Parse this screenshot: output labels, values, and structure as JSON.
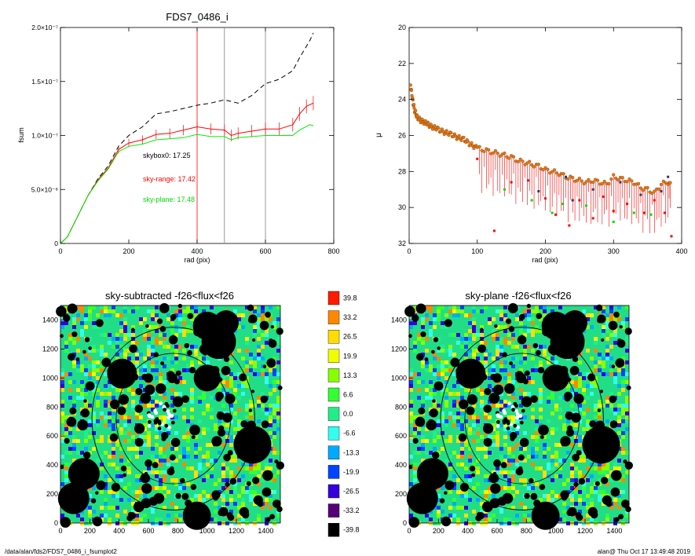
{
  "chart_data": [
    {
      "type": "line",
      "title": "FDS7_0486_i",
      "xlabel": "rad (pix)",
      "ylabel": "fsum",
      "xlim": [
        0,
        800
      ],
      "ylim": [
        0,
        2e-07
      ],
      "xticks": [
        "0",
        "200",
        "400",
        "600",
        "800"
      ],
      "yticks": [
        "0",
        "5.0×10⁻⁸",
        "1.0×10⁻⁷",
        "1.5×10⁻⁷",
        "2.0×10⁻⁷"
      ],
      "ytick_values": [
        0,
        5e-08,
        1e-07,
        1.5e-07,
        2e-07
      ],
      "vlines": [
        {
          "x": 400,
          "color": "#ff0000"
        },
        {
          "x": 480,
          "color": "#808080"
        },
        {
          "x": 600,
          "color": "#808080"
        }
      ],
      "annotations": [
        {
          "text": "skybox0: 17.25",
          "color": "#000000"
        },
        {
          "text": "sky-range: 17.42",
          "color": "#ff0000"
        },
        {
          "text": "sky-plane: 17.48",
          "color": "#00dd00"
        }
      ],
      "series": [
        {
          "style": "dashed",
          "color": "#000000",
          "x": [
            0,
            20,
            50,
            80,
            110,
            140,
            170,
            200,
            240,
            280,
            320,
            360,
            400,
            440,
            480,
            520,
            560,
            600,
            640,
            680,
            700,
            730,
            740
          ],
          "y": [
            0,
            6e-09,
            2.5e-08,
            4.4e-08,
            6e-08,
            7.2e-08,
            9e-08,
            1e-07,
            1.08e-07,
            1.2e-07,
            1.22e-07,
            1.25e-07,
            1.28e-07,
            1.3e-07,
            1.33e-07,
            1.3e-07,
            1.37e-07,
            1.48e-07,
            1.52e-07,
            1.6e-07,
            1.72e-07,
            1.88e-07,
            1.95e-07
          ]
        },
        {
          "style": "solid",
          "color": "#ff0000",
          "errorbars": true,
          "x": [
            0,
            20,
            50,
            80,
            110,
            140,
            170,
            200,
            240,
            280,
            320,
            360,
            400,
            440,
            480,
            500,
            520,
            560,
            600,
            640,
            680,
            700,
            720,
            740
          ],
          "y": [
            0,
            6e-09,
            2.5e-08,
            4.4e-08,
            5.9e-08,
            7e-08,
            8.7e-08,
            9.3e-08,
            9.6e-08,
            1.01e-07,
            1.02e-07,
            1.05e-07,
            1.08e-07,
            1.06e-07,
            1.05e-07,
            1e-07,
            1.02e-07,
            1.04e-07,
            1.06e-07,
            1.06e-07,
            1.1e-07,
            1.2e-07,
            1.27e-07,
            1.3e-07
          ]
        },
        {
          "style": "solid",
          "color": "#00ee00",
          "x": [
            0,
            20,
            50,
            80,
            110,
            140,
            170,
            200,
            240,
            280,
            320,
            360,
            400,
            440,
            480,
            500,
            520,
            560,
            600,
            640,
            680,
            700,
            730,
            740
          ],
          "y": [
            0,
            6e-09,
            2.5e-08,
            4.4e-08,
            5.8e-08,
            6.9e-08,
            8.5e-08,
            9e-08,
            9.2e-08,
            9.6e-08,
            9.7e-08,
            9.8e-08,
            1.01e-07,
            9.9e-08,
            9.9e-08,
            9.6e-08,
            9.8e-08,
            9.9e-08,
            1e-07,
            1e-07,
            1e-07,
            1.05e-07,
            1.1e-07,
            1.09e-07
          ]
        }
      ]
    },
    {
      "type": "scatter",
      "title": "",
      "xlabel": "rad (pix)",
      "ylabel": "μ",
      "xlim": [
        0,
        400
      ],
      "ylim": [
        32,
        20
      ],
      "xticks": [
        "0",
        "100",
        "200",
        "300",
        "400"
      ],
      "yticks": [
        "20",
        "22",
        "24",
        "26",
        "28",
        "30",
        "32"
      ],
      "series": [
        {
          "color": "#e07a1a",
          "marker": "circle",
          "x": [
            2,
            5,
            8,
            12,
            18,
            25,
            32,
            40,
            50,
            60,
            70,
            80,
            90,
            100,
            110,
            120,
            130,
            140,
            150,
            160,
            170,
            180,
            190,
            200,
            210,
            220,
            230,
            240,
            250,
            260,
            270,
            280,
            290,
            300,
            310,
            320,
            330,
            340,
            350,
            360,
            370,
            380,
            385
          ],
          "y": [
            23.2,
            24.0,
            24.6,
            25.0,
            25.2,
            25.3,
            25.5,
            25.6,
            25.8,
            25.9,
            26.1,
            26.2,
            26.5,
            26.7,
            26.8,
            26.9,
            27.0,
            27.1,
            27.2,
            27.4,
            27.5,
            27.6,
            27.7,
            27.9,
            28.0,
            28.1,
            28.3,
            28.4,
            28.5,
            28.6,
            28.5,
            28.6,
            28.7,
            28.3,
            28.4,
            28.5,
            28.6,
            28.9,
            29.0,
            29.2,
            28.7,
            28.6,
            28.8
          ]
        },
        {
          "color": "#ff0000",
          "marker": "square",
          "x": [
            100,
            125,
            150,
            175,
            200,
            215,
            235,
            250,
            270,
            285,
            300,
            320,
            345,
            360,
            375,
            385
          ],
          "y": [
            27.3,
            31.3,
            28.6,
            28.5,
            29.5,
            30.4,
            31.0,
            29.6,
            30.6,
            29.4,
            30.2,
            29.8,
            30.3,
            29.6,
            30.3,
            31.6
          ]
        },
        {
          "color": "#00dd00",
          "marker": "square",
          "x": [
            140,
            180,
            210,
            225,
            260,
            300,
            330,
            355
          ],
          "y": [
            29.0,
            29.6,
            30.3,
            29.8,
            29.9,
            30.8,
            30.3,
            30.4
          ]
        },
        {
          "color": "#333366",
          "marker": "square",
          "x": [
            190,
            230,
            240,
            270,
            310,
            340,
            370,
            380
          ],
          "y": [
            29.1,
            28.3,
            29.6,
            29.0,
            28.6,
            29.3,
            29.1,
            28.3
          ]
        }
      ]
    },
    {
      "type": "heatmap",
      "title": "sky-subtracted -f26<flux<f26",
      "xlim": [
        0,
        1500
      ],
      "ylim": [
        0,
        1500
      ],
      "xticks": [
        "0",
        "200",
        "400",
        "600",
        "800",
        "1000",
        "1200",
        "1400"
      ],
      "yticks": [
        "0",
        "200",
        "400",
        "600",
        "800",
        "1000",
        "1200",
        "1400"
      ]
    },
    {
      "type": "heatmap",
      "title": "sky-plane -f26<flux<f26",
      "xlim": [
        0,
        1500
      ],
      "ylim": [
        0,
        1500
      ],
      "xticks": [
        "0",
        "200",
        "400",
        "600",
        "800",
        "1000",
        "1200",
        "1400"
      ],
      "yticks": [
        "0",
        "200",
        "400",
        "600",
        "800",
        "1000",
        "1200",
        "1400"
      ]
    }
  ],
  "colorbar": {
    "values": [
      "39.8",
      "33.2",
      "26.5",
      "19.9",
      "13.3",
      "6.6",
      "0.0",
      "-6.6",
      "-13.3",
      "-19.9",
      "-26.5",
      "-33.2",
      "-39.8"
    ],
    "colors": [
      "#ff1a00",
      "#ff8800",
      "#ffdd00",
      "#f0ff00",
      "#88ff00",
      "#33ff33",
      "#22ee88",
      "#33ffee",
      "#00aaff",
      "#0044ff",
      "#3300dd",
      "#550077",
      "#000000"
    ]
  },
  "footer": {
    "left": "/data/alan/fds2/FDS7_0486_i_fsumplot2",
    "right": "alan@  Thu Oct 17 13:49:48 2019"
  }
}
